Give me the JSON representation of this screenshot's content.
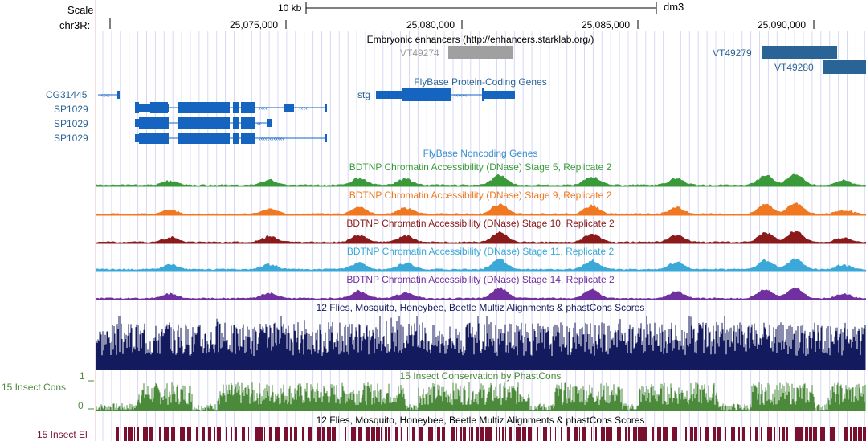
{
  "ruler": {
    "scale_label": "Scale",
    "chrom_label": "chr3R:",
    "scale_bar_label": "10 kb",
    "assembly": "dm3",
    "ticks": [
      "25,075,000",
      "25,080,000",
      "25,085,000",
      "25,090,000"
    ]
  },
  "tracks": {
    "enhancers_title": "Embryonic enhancers (http://enhancers.starklab.org/)",
    "enhancers": [
      {
        "name": "VT49274",
        "color": "#999999"
      },
      {
        "name": "VT49279",
        "color": "#2a6496"
      },
      {
        "name": "VT49280",
        "color": "#2a6496"
      }
    ],
    "flybase_coding_title": "FlyBase Protein-Coding Genes",
    "genes": [
      "CG31445",
      "SP1029",
      "SP1029",
      "SP1029",
      "stg"
    ],
    "flybase_noncoding_title": "FlyBase Noncoding Genes",
    "dnase": [
      {
        "title": "BDTNP Chromatin Accessibility (DNase) Stage 5, Replicate 2",
        "color": "#3a9a3a"
      },
      {
        "title": "BDTNP Chromatin Accessibility (DNase) Stage 9, Replicate 2",
        "color": "#f07820"
      },
      {
        "title": "BDTNP Chromatin Accessibility (DNase) Stage 10, Replicate 2",
        "color": "#8b1a1a"
      },
      {
        "title": "BDTNP Chromatin Accessibility (DNase) Stage 11, Replicate 2",
        "color": "#3aa8d8"
      },
      {
        "title": "BDTNP Chromatin Accessibility (DNase) Stage 14, Replicate 2",
        "color": "#7030a0"
      }
    ],
    "multiz_title": "12 Flies, Mosquito, Honeybee, Beetle Multiz Alignments & phastCons Scores",
    "insect_cons": {
      "side_label": "15 Insect Cons",
      "title": "15 Insect Conservation by PhastCons",
      "y_max": "1",
      "y_min": "0"
    },
    "multiz_title_2": "12 Flies, Mosquito, Honeybee, Beetle Multiz Alignments & phastCons Scores",
    "insect_el_label": "15 Insect El"
  },
  "colors": {
    "gene": "#1565c0",
    "gene_label": "#2a6496",
    "noncoding_label": "#3a8ed0",
    "multiz": "#141a5e",
    "phastcons": "#4a8a3a",
    "elements": "#7a1030",
    "left_margin_line": "#f0b8b8",
    "grid_line": "#d8d8f4"
  }
}
